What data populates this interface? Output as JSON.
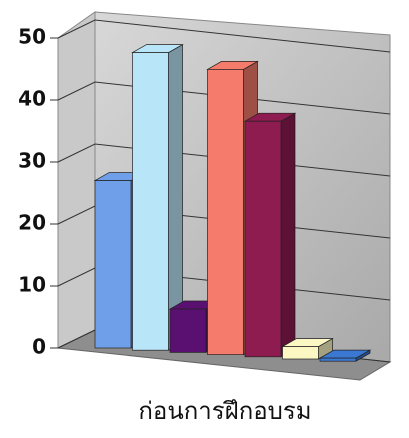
{
  "chart_data": {
    "type": "bar",
    "categories": [
      "ก่อนการฝึกอบรม"
    ],
    "series": [
      {
        "color": "#6f9fe8",
        "values": [
          27
        ]
      },
      {
        "color": "#b9e5f8",
        "values": [
          48
        ]
      },
      {
        "color": "#5a1070",
        "values": [
          7
        ]
      },
      {
        "color": "#f57c6c",
        "values": [
          46
        ]
      },
      {
        "color": "#8e1c50",
        "values": [
          38
        ]
      },
      {
        "color": "#fbf8c4",
        "values": [
          2
        ]
      },
      {
        "color": "#3b78d2",
        "values": [
          0.5
        ]
      }
    ],
    "ylim": [
      0,
      50
    ],
    "yticks": [
      0,
      10,
      20,
      30,
      40,
      50
    ],
    "grid": true
  }
}
